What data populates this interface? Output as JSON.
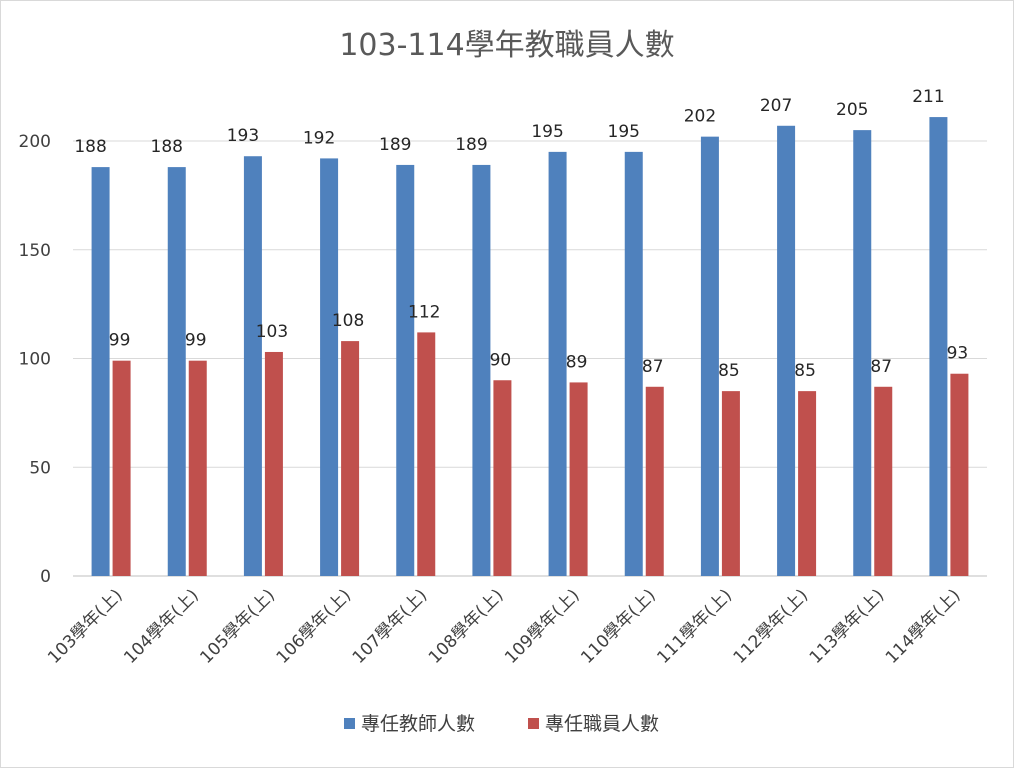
{
  "chart_data": {
    "type": "bar",
    "title": "103-114學年教職員人數",
    "xlabel": "",
    "ylabel": "",
    "categories": [
      "103學年(上)",
      "104學年(上)",
      "105學年(上)",
      "106學年(上)",
      "107學年(上)",
      "108學年(上)",
      "109學年(上)",
      "110學年(上)",
      "111學年(上)",
      "112學年(上)",
      "113學年(上)",
      "114學年(上)"
    ],
    "series": [
      {
        "name": "專任教師人數",
        "color": "#4f81bd",
        "values": [
          188,
          188,
          193,
          192,
          189,
          189,
          195,
          195,
          202,
          207,
          205,
          211
        ]
      },
      {
        "name": "專任職員人數",
        "color": "#c0504d",
        "values": [
          99,
          99,
          103,
          108,
          112,
          90,
          89,
          87,
          85,
          85,
          87,
          93
        ]
      }
    ],
    "ylim": [
      0,
      200
    ],
    "yticks": [
      0,
      50,
      100,
      150,
      200
    ],
    "grid": true,
    "legend": "bottom",
    "data_labels": true
  }
}
